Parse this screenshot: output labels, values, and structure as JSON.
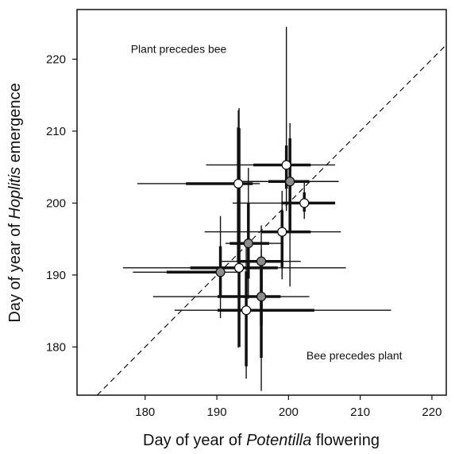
{
  "chart_data": {
    "type": "scatter",
    "x_label": [
      "Day of year of ",
      "Potentilla",
      " flowering"
    ],
    "y_label": [
      "Day of year of ",
      "Hoplitis",
      " emergence"
    ],
    "annotations": [
      {
        "text": "Plant precedes bee",
        "x": 178.0,
        "y": 220.9
      },
      {
        "text": "Bee precedes plant",
        "x": 202.5,
        "y": 178.3
      }
    ],
    "xlim": [
      170.5,
      222
    ],
    "ylim": [
      173.3,
      226.9
    ],
    "xticks": [
      180,
      190,
      200,
      210,
      220
    ],
    "yticks": [
      180,
      190,
      200,
      210,
      220
    ],
    "diagonal": true,
    "points": [
      {
        "x": 193.0,
        "y": 202.7,
        "x_ci": [
          178.9,
          196.0
        ],
        "x_iqr": [
          185.7,
          195.0
        ],
        "y_ci": [
          179.9,
          212.9
        ],
        "y_iqr": [
          191.7,
          210.5
        ],
        "fill": "#ffffff"
      },
      {
        "x": 199.7,
        "y": 205.3,
        "x_ci": [
          188.5,
          206.5
        ],
        "x_iqr": [
          195.1,
          203.1
        ],
        "y_ci": [
          198.9,
          224.5
        ],
        "y_iqr": [
          202.0,
          208.0
        ],
        "fill": "#ffffff"
      },
      {
        "x": 200.2,
        "y": 203.0,
        "x_ci": [
          193.0,
          207.0
        ],
        "x_iqr": [
          197.2,
          202.9
        ],
        "y_ci": [
          188.4,
          211.1
        ],
        "y_iqr": [
          196.0,
          209.0
        ],
        "fill": "#8c8c8c"
      },
      {
        "x": 202.2,
        "y": 200.0,
        "x_ci": [
          192.2,
          206.5
        ],
        "x_iqr": [
          199.0,
          206.5
        ],
        "y_ci": [
          197.8,
          203.0
        ],
        "y_iqr": [
          198.8,
          201.5
        ],
        "fill": "#ffffff"
      },
      {
        "x": 199.1,
        "y": 196.0,
        "x_ci": [
          188.3,
          207.3
        ],
        "x_iqr": [
          196.2,
          203.1
        ],
        "y_ci": [
          189.4,
          201.7
        ],
        "y_iqr": [
          191.0,
          199.0
        ],
        "fill": "#ffffff"
      },
      {
        "x": 194.4,
        "y": 194.4,
        "x_ci": [
          191.2,
          199.2
        ],
        "x_iqr": [
          191.8,
          197.3
        ],
        "y_ci": [
          186.7,
          204.9
        ],
        "y_iqr": [
          189.5,
          200.0
        ],
        "fill": "#8c8c8c"
      },
      {
        "x": 196.2,
        "y": 191.9,
        "x_ci": [
          190.7,
          201.7
        ],
        "x_iqr": [
          192.9,
          198.9
        ],
        "y_ci": [
          178.7,
          193.6
        ],
        "y_iqr": [
          183.0,
          191.0
        ],
        "fill": "#8c8c8c"
      },
      {
        "x": 193.1,
        "y": 191.0,
        "x_ci": [
          176.9,
          208.0
        ],
        "x_iqr": [
          186.3,
          198.5
        ],
        "y_ci": [
          180.0,
          213.2
        ],
        "y_iqr": [
          180.0,
          210.4
        ],
        "fill": "#ffffff"
      },
      {
        "x": 190.5,
        "y": 190.4,
        "x_ci": [
          178.3,
          192.9
        ],
        "x_iqr": [
          183.0,
          190.1
        ],
        "y_ci": [
          184.0,
          198.2
        ],
        "y_iqr": [
          187.0,
          194.0
        ],
        "fill": "#8c8c8c"
      },
      {
        "x": 196.2,
        "y": 187.0,
        "x_ci": [
          181.1,
          202.9
        ],
        "x_iqr": [
          190.1,
          198.9
        ],
        "y_ci": [
          173.9,
          196.9
        ],
        "y_iqr": [
          178.5,
          192.0
        ],
        "fill": "#8c8c8c"
      },
      {
        "x": 194.1,
        "y": 185.1,
        "x_ci": [
          184.1,
          214.3
        ],
        "x_iqr": [
          190.1,
          203.6
        ],
        "y_ci": [
          175.6,
          194.8
        ],
        "y_iqr": [
          177.3,
          190.5
        ],
        "fill": "#ffffff"
      }
    ]
  }
}
